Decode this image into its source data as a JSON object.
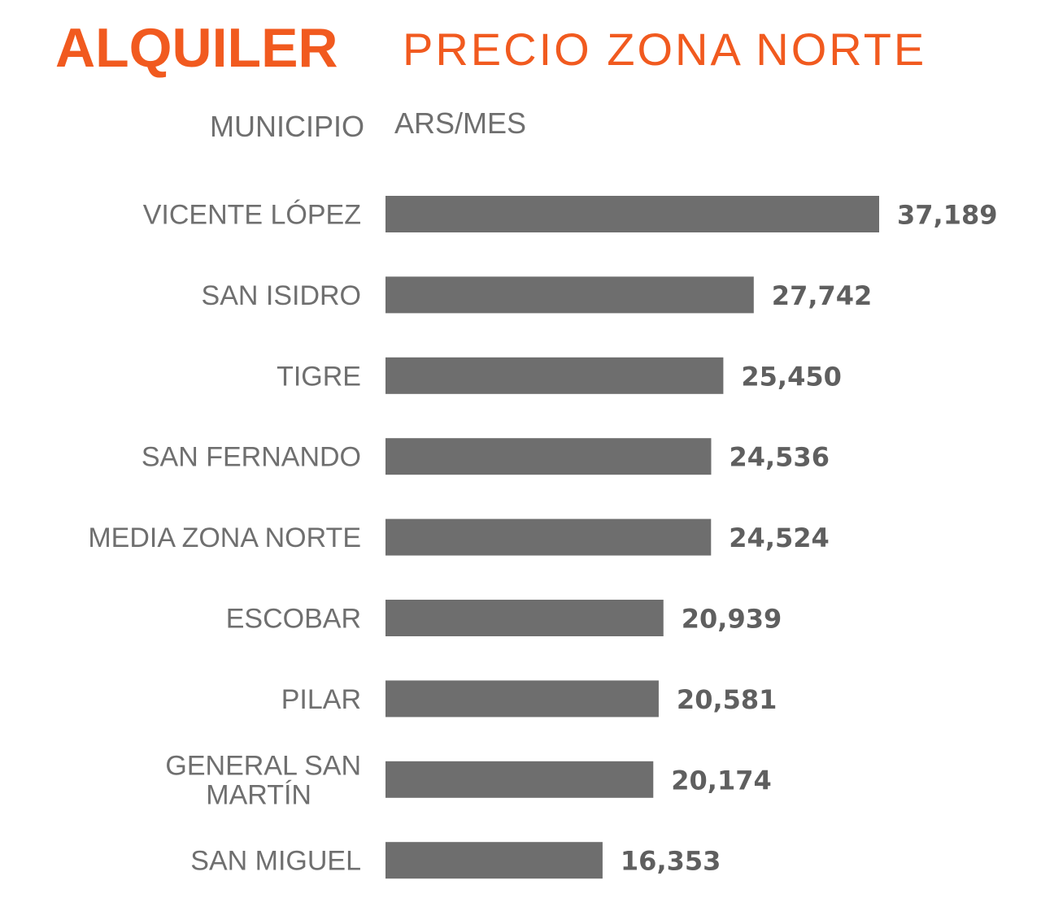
{
  "header": {
    "title_bold": "ALQUILER",
    "title_light": "PRECIO ZONA NORTE"
  },
  "columns": {
    "category_header": "MUNICIPIO",
    "value_header": "ARS/MES"
  },
  "colors": {
    "accent": "#f15a1f",
    "bar": "#6e6e6e",
    "label": "#6f6f6f",
    "value": "#5f5f5f"
  },
  "chart_data": {
    "type": "bar",
    "orientation": "horizontal",
    "categories": [
      [
        "VICENTE LÓPEZ"
      ],
      [
        "SAN ISIDRO"
      ],
      [
        "TIGRE"
      ],
      [
        "SAN FERNANDO"
      ],
      [
        "MEDIA ZONA NORTE"
      ],
      [
        "ESCOBAR"
      ],
      [
        "PILAR"
      ],
      [
        "GENERAL SAN",
        "MARTÍN"
      ],
      [
        "SAN MIGUEL"
      ]
    ],
    "values": [
      37189,
      27742,
      25450,
      24536,
      24524,
      20939,
      20581,
      20174,
      16353
    ],
    "value_labels": [
      "37,189",
      "27,742",
      "25,450",
      "24,536",
      "24,524",
      "20,939",
      "20,581",
      "20,174",
      "16,353"
    ],
    "xlim": [
      0,
      37189
    ],
    "grid": false,
    "legend": "none"
  }
}
